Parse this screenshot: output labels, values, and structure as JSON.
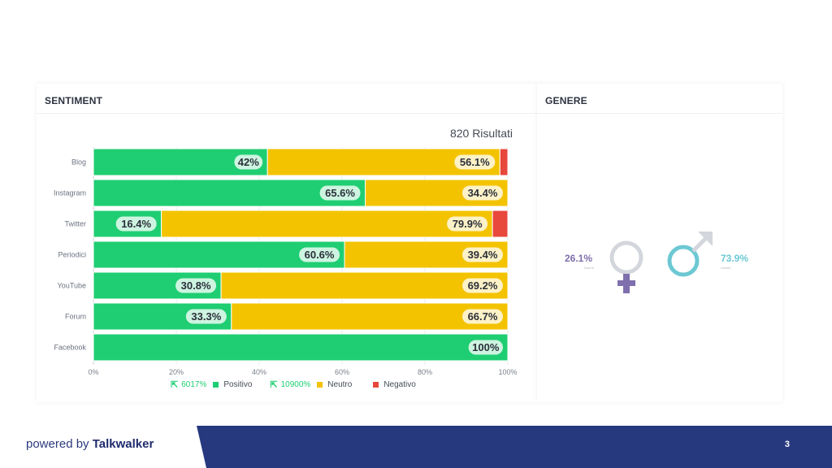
{
  "sentiment": {
    "title": "SENTIMENT",
    "results_label": "820 Risultati"
  },
  "gender": {
    "title": "GENERE",
    "female_pct": "26.1%",
    "female_sub": "Donne",
    "male_pct": "73.9%",
    "male_sub": "Uomini",
    "female_color": "#7f6fad",
    "male_color": "#6cc8d3"
  },
  "legend": {
    "positive_count": "6017%",
    "positive_label": "Positivo",
    "neutral_count": "10900%",
    "neutral_label": "Neutro",
    "negative_label": "Negativo"
  },
  "footer": {
    "brand_prefix": "powered by ",
    "brand_name": "Talkwalker",
    "page_number": "3"
  },
  "colors": {
    "positive": "#1fce72",
    "neutral": "#f3c300",
    "negative": "#e8473c",
    "footer_band": "#26397f"
  },
  "chart_data": {
    "type": "bar",
    "orientation": "horizontal",
    "stacked": true,
    "categories": [
      "Blog",
      "Instagram",
      "Twitter",
      "Periodici",
      "YouTube",
      "Forum",
      "Facebook"
    ],
    "series": [
      {
        "name": "Positivo",
        "values": [
          42,
          65.6,
          16.4,
          60.6,
          30.8,
          33.3,
          100
        ],
        "labels": [
          "42%",
          "65.6%",
          "16.4%",
          "60.6%",
          "30.8%",
          "33.3%",
          "100%"
        ]
      },
      {
        "name": "Neutro",
        "values": [
          56.1,
          34.4,
          79.9,
          39.4,
          69.2,
          66.7,
          0
        ],
        "labels": [
          "56.1%",
          "34.4%",
          "79.9%",
          "39.4%",
          "69.2%",
          "66.7%",
          ""
        ]
      },
      {
        "name": "Negativo",
        "values": [
          1.9,
          0,
          3.7,
          0,
          0,
          0,
          0
        ],
        "labels": [
          "",
          "",
          "",
          "",
          "",
          "",
          ""
        ]
      }
    ],
    "xlim": [
      0,
      100
    ],
    "xticks": [
      "0%",
      "20%",
      "40%",
      "60%",
      "80%",
      "100%"
    ],
    "grid": true,
    "legend_position": "bottom"
  }
}
